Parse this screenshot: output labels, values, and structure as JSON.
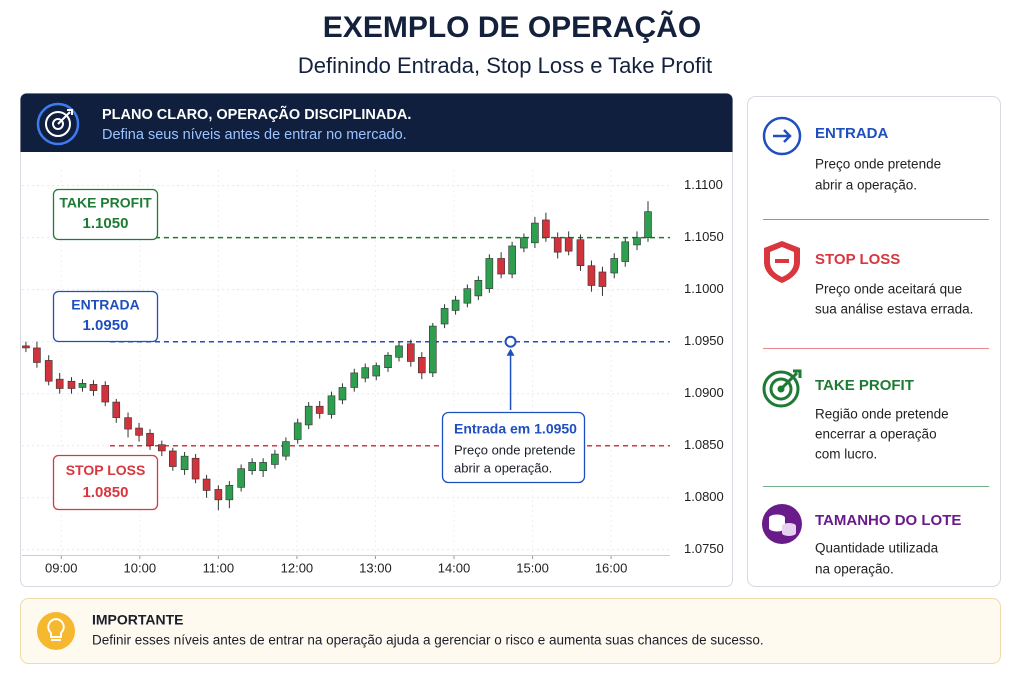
{
  "header": {
    "title": "EXEMPLO DE OPERAÇÃO",
    "subtitle": "Definindo Entrada, Stop Loss e Take Profit"
  },
  "banner": {
    "title": "PLANO CLARO, OPERAÇÃO DISCIPLINADA.",
    "text": "Defina seus níveis antes de entrar no mercado."
  },
  "chart_data": {
    "type": "candlestick",
    "x": [
      8.55,
      8.69,
      8.84,
      8.98,
      9.13,
      9.27,
      9.41,
      9.56,
      9.7,
      9.85,
      9.99,
      10.13,
      10.28,
      10.42,
      10.57,
      10.71,
      10.85,
      11.0,
      11.14,
      11.29,
      11.43,
      11.57,
      11.72,
      11.86,
      12.01,
      12.15,
      12.29,
      12.44,
      12.58,
      12.73,
      12.87,
      13.01,
      13.16,
      13.3,
      13.45,
      13.59,
      13.73,
      13.88,
      14.02,
      14.17,
      14.31,
      14.45,
      14.6,
      14.74,
      14.89,
      15.03,
      15.17,
      15.32,
      15.46,
      15.61,
      15.75,
      15.89,
      16.04,
      16.18,
      16.33,
      16.47
    ],
    "open": [
      1.0946,
      1.0944,
      1.0932,
      1.0914,
      1.0912,
      1.0906,
      1.0909,
      1.0908,
      1.0892,
      1.0877,
      1.0867,
      1.0862,
      1.0851,
      1.0845,
      1.0827,
      1.0838,
      1.0818,
      1.0808,
      1.0798,
      1.081,
      1.0826,
      1.0826,
      1.0832,
      1.084,
      1.0856,
      1.087,
      1.0888,
      1.088,
      1.0894,
      1.0906,
      1.0915,
      1.0917,
      1.0925,
      1.0935,
      1.0948,
      1.0935,
      1.092,
      1.0967,
      1.098,
      1.0987,
      1.0994,
      1.1001,
      1.103,
      1.1015,
      1.104,
      1.1045,
      1.1067,
      1.105,
      1.105,
      1.1048,
      1.1023,
      1.1017,
      1.1016,
      1.1027,
      1.1043,
      1.105
    ],
    "high": [
      1.095,
      1.095,
      1.0937,
      1.092,
      1.0916,
      1.0914,
      1.0913,
      1.0912,
      1.0895,
      1.0882,
      1.0872,
      1.0866,
      1.0855,
      1.0848,
      1.0844,
      1.0842,
      1.0822,
      1.0812,
      1.0816,
      1.0832,
      1.0838,
      1.0838,
      1.0846,
      1.0858,
      1.0876,
      1.0892,
      1.0893,
      1.0902,
      1.091,
      1.0924,
      1.0929,
      1.093,
      1.094,
      1.095,
      1.0952,
      1.094,
      1.0968,
      1.0986,
      1.0994,
      1.1005,
      1.1013,
      1.1034,
      1.1036,
      1.1046,
      1.1054,
      1.107,
      1.1074,
      1.1055,
      1.1056,
      1.1053,
      1.1028,
      1.1022,
      1.1035,
      1.105,
      1.1056,
      1.1085
    ],
    "low": [
      1.094,
      1.0925,
      1.0908,
      1.09,
      1.09,
      1.0902,
      1.0898,
      1.0888,
      1.0872,
      1.0858,
      1.0854,
      1.0846,
      1.084,
      1.0826,
      1.0822,
      1.0814,
      1.08,
      1.0788,
      1.079,
      1.0806,
      1.0822,
      1.082,
      1.0828,
      1.0836,
      1.0852,
      1.0866,
      1.0876,
      1.0876,
      1.089,
      1.0902,
      1.0911,
      1.0913,
      1.0921,
      1.0931,
      1.0926,
      1.0914,
      1.0916,
      1.0963,
      1.0976,
      1.0983,
      1.099,
      1.0997,
      1.1011,
      1.1011,
      1.1036,
      1.104,
      1.1046,
      1.103,
      1.1033,
      1.1018,
      1.0998,
      1.0994,
      1.1011,
      1.1022,
      1.1038,
      1.1046
    ],
    "close": [
      1.0944,
      1.093,
      1.0912,
      1.0905,
      1.0905,
      1.091,
      1.0903,
      1.0892,
      1.0877,
      1.0866,
      1.086,
      1.085,
      1.0845,
      1.083,
      1.084,
      1.0818,
      1.0807,
      1.0798,
      1.0812,
      1.0828,
      1.0834,
      1.0834,
      1.0842,
      1.0854,
      1.0872,
      1.0888,
      1.0881,
      1.0898,
      1.0906,
      1.092,
      1.0925,
      1.0927,
      1.0937,
      1.0946,
      1.0931,
      1.092,
      1.0965,
      1.0982,
      1.099,
      1.1001,
      1.1009,
      1.103,
      1.1015,
      1.1042,
      1.105,
      1.1064,
      1.105,
      1.1036,
      1.1037,
      1.1023,
      1.1004,
      1.1003,
      1.103,
      1.1046,
      1.105,
      1.1075
    ],
    "up_color": "#2e9e4f",
    "down_color": "#d0333b",
    "xlim": [
      8.5,
      16.75
    ],
    "xticks": [
      {
        "value": 9,
        "label": "09:00"
      },
      {
        "value": 10,
        "label": "10:00"
      },
      {
        "value": 11,
        "label": "11:00"
      },
      {
        "value": 12,
        "label": "12:00"
      },
      {
        "value": 13,
        "label": "13:00"
      },
      {
        "value": 14,
        "label": "14:00"
      },
      {
        "value": 15,
        "label": "15:00"
      },
      {
        "value": 16,
        "label": "16:00"
      }
    ],
    "ylim": [
      1.0745,
      1.1115
    ],
    "yticks": [
      {
        "value": 1.075,
        "label": "1.0750"
      },
      {
        "value": 1.08,
        "label": "1.0800"
      },
      {
        "value": 1.085,
        "label": "1.0850"
      },
      {
        "value": 1.09,
        "label": "1.0900"
      },
      {
        "value": 1.095,
        "label": "1.0950"
      },
      {
        "value": 1.1,
        "label": "1.1000"
      },
      {
        "value": 1.105,
        "label": "1.1050"
      },
      {
        "value": 1.11,
        "label": "1.1100"
      }
    ],
    "grid": true,
    "levels": [
      {
        "name": "TAKE PROFIT",
        "value": 1.105,
        "value_label": "1.1050",
        "color": "#1e7b34"
      },
      {
        "name": "ENTRADA",
        "value": 1.095,
        "value_label": "1.0950",
        "color": "#1f4fbf"
      },
      {
        "name": "STOP LOSS",
        "value": 1.085,
        "value_label": "1.0850",
        "color": "#d9363e"
      }
    ],
    "annotation": {
      "title": "Entrada em 1.0950",
      "lines": [
        "Preço onde pretende",
        "abrir a operação."
      ],
      "x": 14.72,
      "y": 1.095
    }
  },
  "sidebar": {
    "items": [
      {
        "title": "ENTRADA",
        "lines": [
          "Preço onde pretende",
          "abrir a operação."
        ],
        "color": "#1f4fbf"
      },
      {
        "title": "STOP LOSS",
        "lines": [
          "Preço onde aceitará que",
          "sua análise estava errada."
        ],
        "color": "#d9363e"
      },
      {
        "title": "TAKE PROFIT",
        "lines": [
          "Região onde pretende",
          "encerrar a operação",
          "com lucro."
        ],
        "color": "#1e7b34"
      },
      {
        "title": "TAMANHO DO LOTE",
        "lines": [
          "Quantidade utilizada",
          "na operação."
        ],
        "color": "#6a1b8a"
      }
    ]
  },
  "note": {
    "title": "IMPORTANTE",
    "text": "Definir esses níveis antes de entrar na operação ajuda a gerenciar o risco e aumenta suas chances de sucesso."
  }
}
